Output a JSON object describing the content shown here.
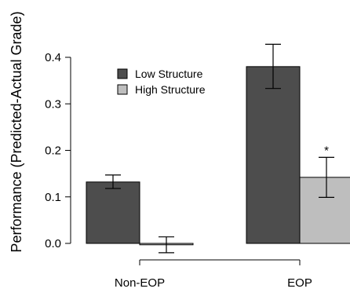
{
  "chart_data": {
    "type": "bar",
    "categories": [
      "Non-EOP",
      "EOP"
    ],
    "ylabel": "Performance (Predicted-Actual Grade)",
    "xlabel": "",
    "ylim": [
      -0.05,
      0.45
    ],
    "yticks": [
      0.0,
      0.1,
      0.2,
      0.3,
      0.4
    ],
    "ytick_labels": [
      "0.0",
      "0.1",
      "0.2",
      "0.3",
      "0.4"
    ],
    "grid": false,
    "legend_position": "top-left",
    "series": [
      {
        "name": "Low Structure",
        "color": "#4d4d4d",
        "values": [
          0.132,
          0.38
        ],
        "error_low": [
          0.118,
          0.333
        ],
        "error_high": [
          0.147,
          0.428
        ]
      },
      {
        "name": "High Structure",
        "color": "#bebebe",
        "values": [
          -0.003,
          0.142
        ],
        "error_low": [
          -0.02,
          0.099
        ],
        "error_high": [
          0.014,
          0.185
        ]
      }
    ],
    "annotations": [
      {
        "text": "*",
        "category": "EOP",
        "series": "High Structure"
      }
    ]
  }
}
